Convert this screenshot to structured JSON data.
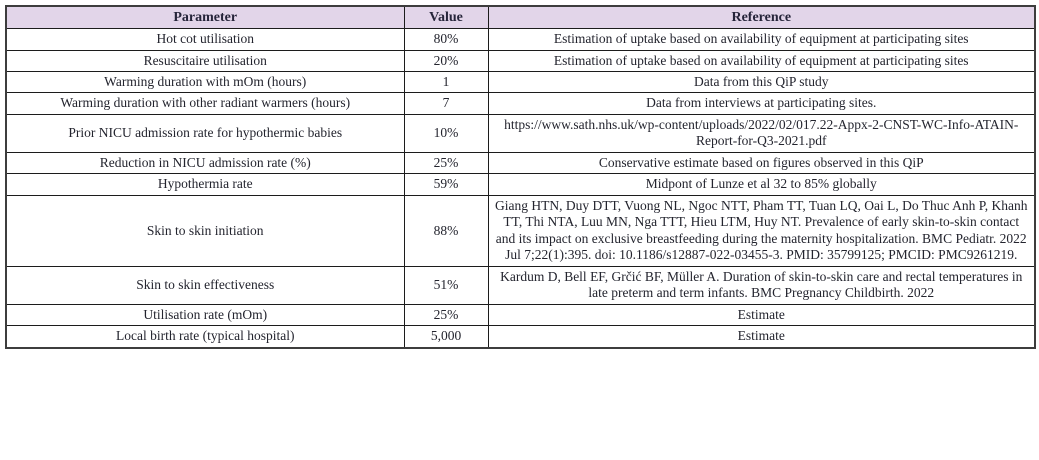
{
  "table": {
    "columns": [
      "Parameter",
      "Value",
      "Reference"
    ],
    "rows": [
      {
        "parameter": "Hot cot utilisation",
        "value": "80%",
        "reference": "Estimation of uptake based on availability of equipment at participating sites"
      },
      {
        "parameter": "Resuscitaire utilisation",
        "value": "20%",
        "reference": "Estimation of uptake based on availability of equipment at participating sites"
      },
      {
        "parameter": "Warming duration with mOm (hours)",
        "value": "1",
        "reference": "Data from this QiP study"
      },
      {
        "parameter": "Warming duration with other radiant warmers (hours)",
        "value": "7",
        "reference": "Data from interviews at participating sites."
      },
      {
        "parameter": "Prior NICU admission rate for hypothermic babies",
        "value": "10%",
        "reference": "https://www.sath.nhs.uk/wp-content/uploads/2022/02/017.22-Appx-2-CNST-WC-Info-ATAIN-Report-for-Q3-2021.pdf"
      },
      {
        "parameter": "Reduction in NICU admission rate (%)",
        "value": "25%",
        "reference": "Conservative estimate based on figures observed in this QiP"
      },
      {
        "parameter": "Hypothermia rate",
        "value": "59%",
        "reference": "Midpont of Lunze et al 32 to 85% globally"
      },
      {
        "parameter": "Skin to skin initiation",
        "value": "88%",
        "reference": "Giang HTN, Duy DTT, Vuong NL, Ngoc NTT, Pham TT, Tuan LQ, Oai L, Do Thuc Anh P, Khanh TT, Thi NTA, Luu MN, Nga TTT, Hieu LTM, Huy NT. Prevalence of early skin-to-skin contact and its impact on exclusive breastfeeding during the maternity hospitalization. BMC Pediatr. 2022 Jul 7;22(1):395. doi: 10.1186/s12887-022-03455-3. PMID: 35799125; PMCID: PMC9261219."
      },
      {
        "parameter": "Skin to skin effectiveness",
        "value": "51%",
        "reference": "Kardum D, Bell EF, Grčić BF, Müller A. Duration of skin-to-skin care and rectal temperatures in late preterm and term infants. BMC Pregnancy Childbirth. 2022"
      },
      {
        "parameter": "Utilisation rate (mOm)",
        "value": "25%",
        "reference": "Estimate"
      },
      {
        "parameter": "Local birth rate (typical hospital)",
        "value": "5,000",
        "reference": "Estimate"
      }
    ]
  },
  "colors": {
    "header_bg": "#e2d5e9",
    "grid_line": "#1c1c1c",
    "outer_border": "#3d3d3d",
    "text": "#23242e"
  }
}
